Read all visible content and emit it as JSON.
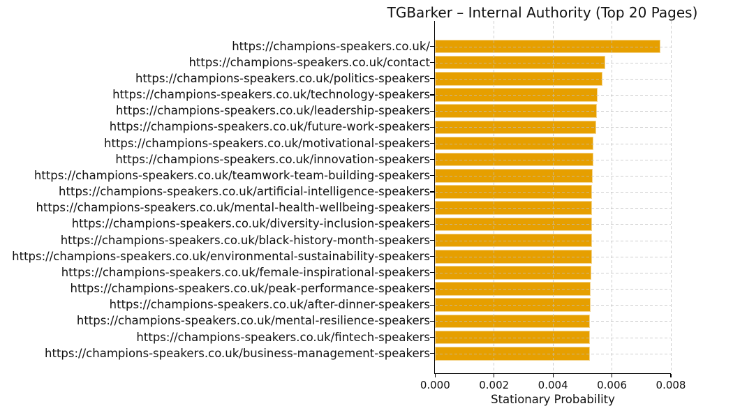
{
  "chart_data": {
    "type": "bar",
    "orientation": "horizontal",
    "title": "TGBarker – Internal Authority (Top 20 Pages)",
    "xlabel": "Stationary Probability",
    "ylabel": "",
    "xlim": [
      0,
      0.008
    ],
    "xticks": [
      0,
      0.002,
      0.004,
      0.006,
      0.008
    ],
    "xtick_labels": [
      "0.000",
      "0.002",
      "0.004",
      "0.006",
      "0.008"
    ],
    "grid": true,
    "grid_style": "dashed",
    "legend": false,
    "bar_color": "#E69F00",
    "categories": [
      "https://champions-speakers.co.uk/",
      "https://champions-speakers.co.uk/contact",
      "https://champions-speakers.co.uk/politics-speakers",
      "https://champions-speakers.co.uk/technology-speakers",
      "https://champions-speakers.co.uk/leadership-speakers",
      "https://champions-speakers.co.uk/future-work-speakers",
      "https://champions-speakers.co.uk/motivational-speakers",
      "https://champions-speakers.co.uk/innovation-speakers",
      "https://champions-speakers.co.uk/teamwork-team-building-speakers",
      "https://champions-speakers.co.uk/artificial-intelligence-speakers",
      "https://champions-speakers.co.uk/mental-health-wellbeing-speakers",
      "https://champions-speakers.co.uk/diversity-inclusion-speakers",
      "https://champions-speakers.co.uk/black-history-month-speakers",
      "https://champions-speakers.co.uk/environmental-sustainability-speakers",
      "https://champions-speakers.co.uk/female-inspirational-speakers",
      "https://champions-speakers.co.uk/peak-performance-speakers",
      "https://champions-speakers.co.uk/after-dinner-speakers",
      "https://champions-speakers.co.uk/mental-resilience-speakers",
      "https://champions-speakers.co.uk/fintech-speakers",
      "https://champions-speakers.co.uk/business-management-speakers"
    ],
    "values": [
      0.00764,
      0.00579,
      0.00568,
      0.00553,
      0.00549,
      0.00547,
      0.00538,
      0.00537,
      0.00536,
      0.00534,
      0.00534,
      0.00533,
      0.00533,
      0.00532,
      0.00531,
      0.00529,
      0.00528,
      0.00527,
      0.00527,
      0.00526
    ]
  }
}
